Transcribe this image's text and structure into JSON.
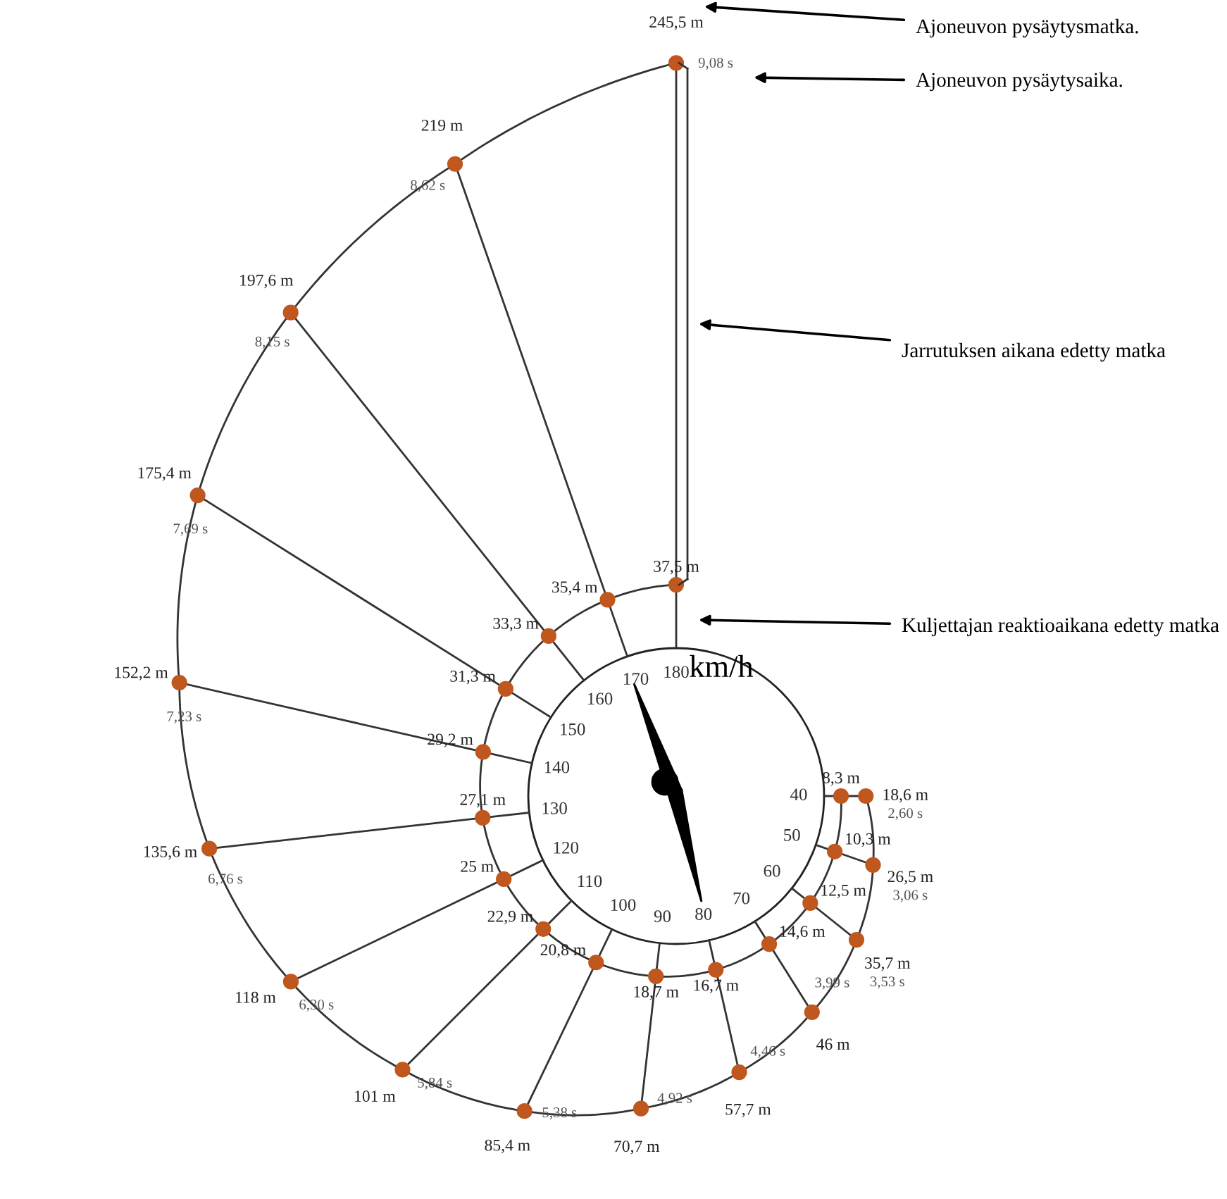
{
  "chart_data": {
    "type": "other",
    "xlabel": "km/h",
    "categories": [
      "40",
      "50",
      "60",
      "70",
      "80",
      "90",
      "100",
      "110",
      "120",
      "130",
      "140",
      "150",
      "160",
      "170",
      "180"
    ],
    "series": [
      {
        "color": "#c0571f",
        "values": [
          8.3,
          10.3,
          12.5,
          14.6,
          16.7,
          18.7,
          20.8,
          22.9,
          25,
          27.1,
          29.2,
          31.3,
          33.3,
          35.4,
          37.5
        ],
        "value_labels": [
          "8,3 m",
          "10,3 m",
          "12,5 m",
          "14,6 m",
          "16,7 m",
          "18,7 m",
          "20,8 m",
          "22,9 m",
          "25 m",
          "27,1 m",
          "29,2 m",
          "31,3 m",
          "33,3 m",
          "35,4 m",
          "37,5 m"
        ]
      },
      {
        "color": "#c0571f",
        "values": [
          18.6,
          26.5,
          35.7,
          46,
          57.7,
          70.7,
          85.4,
          101,
          118,
          135.6,
          152.2,
          175.4,
          197.6,
          219,
          245.5
        ],
        "value_labels": [
          "18,6 m",
          "26,5 m",
          "35,7 m",
          "46 m",
          "57,7 m",
          "70,7 m",
          "85,4 m",
          "101 m",
          "118 m",
          "135,6 m",
          "152,2 m",
          "175,4 m",
          "197,6 m",
          "219 m",
          "245,5 m"
        ]
      },
      {
        "values": [
          2.6,
          3.06,
          3.53,
          3.99,
          4.46,
          4.92,
          5.38,
          5.84,
          6.3,
          6.76,
          7.23,
          7.69,
          8.15,
          8.62,
          9.08
        ],
        "value_labels": [
          "2,60 s",
          "3,06 s",
          "3,53 s",
          "3,99 s",
          "4,46 s",
          "4,92 s",
          "5,38 s",
          "5,84 s",
          "6,30 s",
          "6,76 s",
          "7,23 s",
          "7,69 s",
          "8,15 s",
          "8,62 s",
          "9,08 s"
        ]
      }
    ],
    "annotations": [
      "Ajoneuvon pysäytysmatka.",
      "Ajoneuvon pysäytysaika.",
      "Jarrutuksen aikana edetty matka",
      "Kuljettajan reaktioaikana edetty matka"
    ]
  }
}
